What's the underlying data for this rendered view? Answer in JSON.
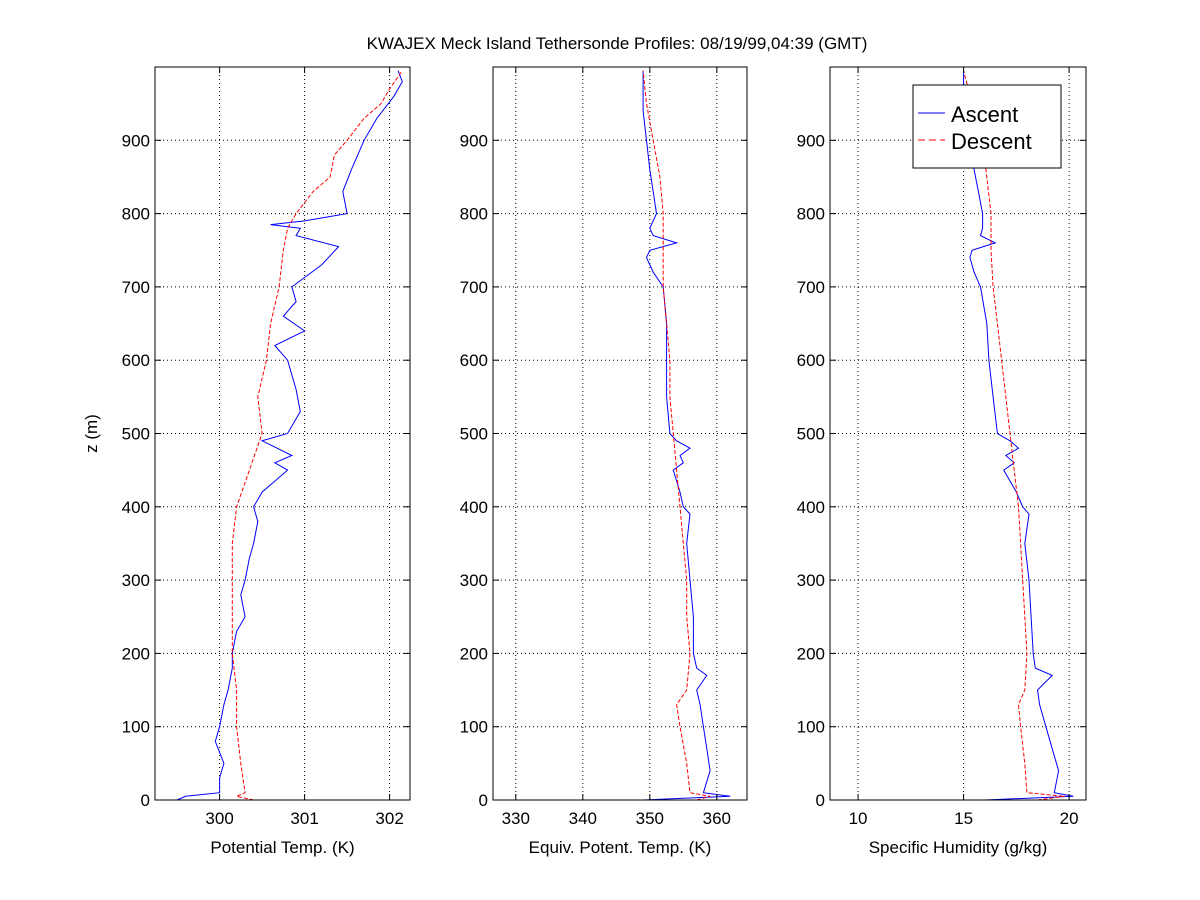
{
  "figure_title": "KWAJEX Meck Island Tethersonde Profiles: 08/19/99,04:39 (GMT)",
  "colors": {
    "ascent": "#0000ff",
    "descent": "#ff0000",
    "grid": "#000000",
    "axes": "#000000"
  },
  "chart_data": [
    {
      "type": "line",
      "id": "potential-temp",
      "xlabel": "Potential Temp. (K)",
      "ylabel": "z (m)",
      "xlim": [
        299.24,
        302.24
      ],
      "ylim": [
        0,
        1000
      ],
      "xticks": [
        300,
        301,
        302
      ],
      "yticks": [
        0,
        100,
        200,
        300,
        400,
        500,
        600,
        700,
        800,
        900
      ],
      "grid": true,
      "series": [
        {
          "name": "Ascent",
          "style": "solid",
          "z": [
            0,
            5,
            10,
            30,
            50,
            80,
            100,
            130,
            150,
            180,
            200,
            230,
            250,
            280,
            300,
            330,
            350,
            380,
            400,
            420,
            430,
            450,
            460,
            470,
            490,
            500,
            530,
            560,
            600,
            620,
            640,
            660,
            680,
            700,
            730,
            755,
            770,
            780,
            785,
            790,
            800,
            830,
            860,
            900,
            930,
            960,
            980,
            995
          ],
          "x": [
            299.5,
            299.6,
            300.0,
            300.0,
            300.05,
            299.95,
            300.0,
            300.05,
            300.1,
            300.15,
            300.15,
            300.2,
            300.3,
            300.25,
            300.3,
            300.35,
            300.4,
            300.45,
            300.4,
            300.5,
            300.6,
            300.8,
            300.65,
            300.85,
            300.5,
            300.8,
            300.95,
            300.9,
            300.8,
            300.65,
            301.0,
            300.75,
            300.9,
            300.85,
            301.2,
            301.4,
            300.9,
            300.95,
            300.6,
            301.0,
            301.5,
            301.45,
            301.55,
            301.7,
            301.85,
            302.05,
            302.15,
            302.1
          ]
        },
        {
          "name": "Descent",
          "style": "dashed",
          "z": [
            0,
            5,
            10,
            50,
            100,
            150,
            200,
            250,
            300,
            350,
            400,
            450,
            500,
            550,
            600,
            650,
            700,
            750,
            780,
            800,
            830,
            850,
            880,
            900,
            930,
            950,
            970,
            995
          ],
          "x": [
            300.4,
            300.2,
            300.3,
            300.25,
            300.2,
            300.2,
            300.15,
            300.15,
            300.15,
            300.15,
            300.2,
            300.35,
            300.5,
            300.45,
            300.55,
            300.6,
            300.7,
            300.75,
            300.8,
            300.9,
            301.1,
            301.3,
            301.35,
            301.5,
            301.7,
            301.9,
            302.0,
            302.15
          ]
        }
      ]
    },
    {
      "type": "line",
      "id": "equiv-potential-temp",
      "xlabel": "Equiv. Potent. Temp. (K)",
      "ylabel": "",
      "xlim": [
        326.6,
        364.5
      ],
      "ylim": [
        0,
        1000
      ],
      "xticks": [
        330,
        340,
        350,
        360
      ],
      "yticks": [
        0,
        100,
        200,
        300,
        400,
        500,
        600,
        700,
        800,
        900
      ],
      "grid": true,
      "series": [
        {
          "name": "Ascent",
          "style": "solid",
          "z": [
            0,
            5,
            10,
            40,
            70,
            100,
            130,
            150,
            170,
            180,
            200,
            250,
            300,
            350,
            390,
            400,
            420,
            450,
            460,
            470,
            480,
            490,
            500,
            550,
            600,
            650,
            700,
            720,
            740,
            750,
            760,
            770,
            780,
            800,
            830,
            860,
            900,
            940,
            995
          ],
          "x": [
            349,
            362,
            358,
            359,
            358.5,
            358,
            357.5,
            357,
            358.5,
            357,
            356.5,
            356.5,
            356,
            355.5,
            356,
            355,
            354.5,
            353.5,
            355,
            354.5,
            356,
            354,
            353,
            352.5,
            352.5,
            352.5,
            352,
            350.5,
            349.5,
            350,
            354,
            350.5,
            350,
            351,
            350.5,
            350,
            349.5,
            349,
            349
          ]
        },
        {
          "name": "Descent",
          "style": "dashed",
          "z": [
            0,
            5,
            10,
            50,
            100,
            130,
            150,
            200,
            250,
            300,
            350,
            400,
            450,
            500,
            550,
            600,
            650,
            700,
            750,
            800,
            850,
            900,
            950,
            995
          ],
          "x": [
            357,
            359,
            356,
            355.5,
            354.5,
            354,
            355.5,
            356,
            355.5,
            355.5,
            355,
            354.5,
            354,
            353.5,
            353,
            353,
            352.5,
            352,
            352,
            352,
            351.5,
            350.5,
            349.5,
            349
          ]
        }
      ]
    },
    {
      "type": "line",
      "id": "specific-humidity",
      "xlabel": "Specific Humidity (g/kg)",
      "ylabel": "",
      "xlim": [
        8.67,
        20.8
      ],
      "ylim": [
        0,
        1000
      ],
      "xticks": [
        10,
        15,
        20
      ],
      "yticks": [
        0,
        100,
        200,
        300,
        400,
        500,
        600,
        700,
        800,
        900
      ],
      "grid": true,
      "series": [
        {
          "name": "Ascent",
          "style": "solid",
          "z": [
            0,
            5,
            10,
            40,
            70,
            100,
            130,
            150,
            170,
            180,
            200,
            250,
            300,
            350,
            390,
            400,
            420,
            450,
            460,
            470,
            480,
            490,
            500,
            550,
            600,
            650,
            700,
            720,
            740,
            750,
            760,
            770,
            780,
            800,
            830,
            860,
            900,
            940,
            995
          ],
          "x": [
            16,
            20.2,
            19.3,
            19.5,
            19.2,
            18.9,
            18.6,
            18.5,
            19.2,
            18.4,
            18.3,
            18.2,
            18.1,
            17.9,
            18.1,
            17.8,
            17.5,
            16.9,
            17.4,
            17.0,
            17.6,
            17.2,
            16.6,
            16.4,
            16.2,
            16.1,
            15.8,
            15.5,
            15.3,
            15.4,
            16.5,
            15.8,
            15.9,
            15.9,
            15.7,
            15.5,
            15.2,
            15.0,
            15.0
          ]
        },
        {
          "name": "Descent",
          "style": "dashed",
          "z": [
            0,
            5,
            10,
            50,
            100,
            130,
            150,
            200,
            250,
            300,
            350,
            400,
            450,
            500,
            550,
            600,
            650,
            700,
            750,
            800,
            850,
            900,
            950,
            995
          ],
          "x": [
            18.5,
            19.8,
            18.0,
            17.9,
            17.7,
            17.6,
            17.9,
            18.0,
            17.9,
            17.8,
            17.7,
            17.6,
            17.4,
            17.2,
            17.0,
            16.8,
            16.6,
            16.4,
            16.3,
            16.3,
            16.1,
            15.9,
            15.4,
            15.0
          ]
        }
      ],
      "legend": {
        "placement": "top-right",
        "entries": [
          "Ascent",
          "Descent"
        ]
      }
    }
  ]
}
